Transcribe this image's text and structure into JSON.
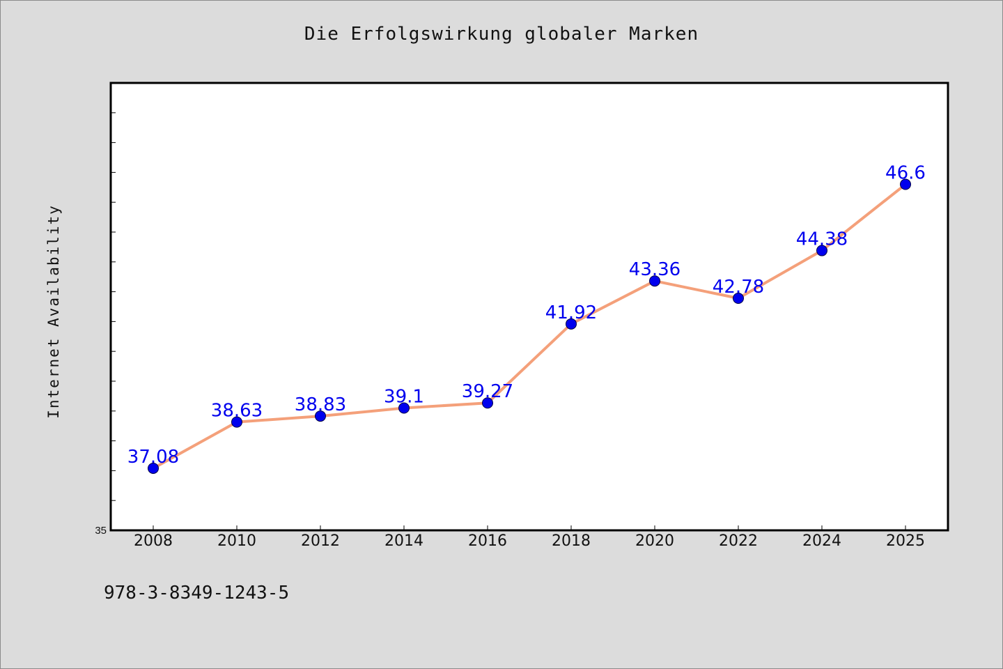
{
  "chart_data": {
    "type": "line",
    "title": "Die Erfolgswirkung globaler Marken",
    "xlabel": "",
    "ylabel": "Internet Availability",
    "categories": [
      "2008",
      "2010",
      "2012",
      "2014",
      "2016",
      "2018",
      "2020",
      "2022",
      "2024",
      "2025"
    ],
    "values": [
      37.08,
      38.63,
      38.83,
      39.1,
      39.27,
      41.92,
      43.36,
      42.78,
      44.38,
      46.6
    ],
    "data_labels": [
      "37.08",
      "38.63",
      "38.83",
      "39.1",
      "39.27",
      "41.92",
      "43.36",
      "42.78",
      "44.38",
      "46.6"
    ],
    "ylim": [
      35,
      50
    ],
    "y_tick_labels": [
      "35"
    ],
    "grid": false,
    "line_color": "#f4a07a",
    "marker_color": "#0000ee",
    "label_color": "#0000ee"
  },
  "footer": {
    "isbn": "978-3-8349-1243-5"
  }
}
